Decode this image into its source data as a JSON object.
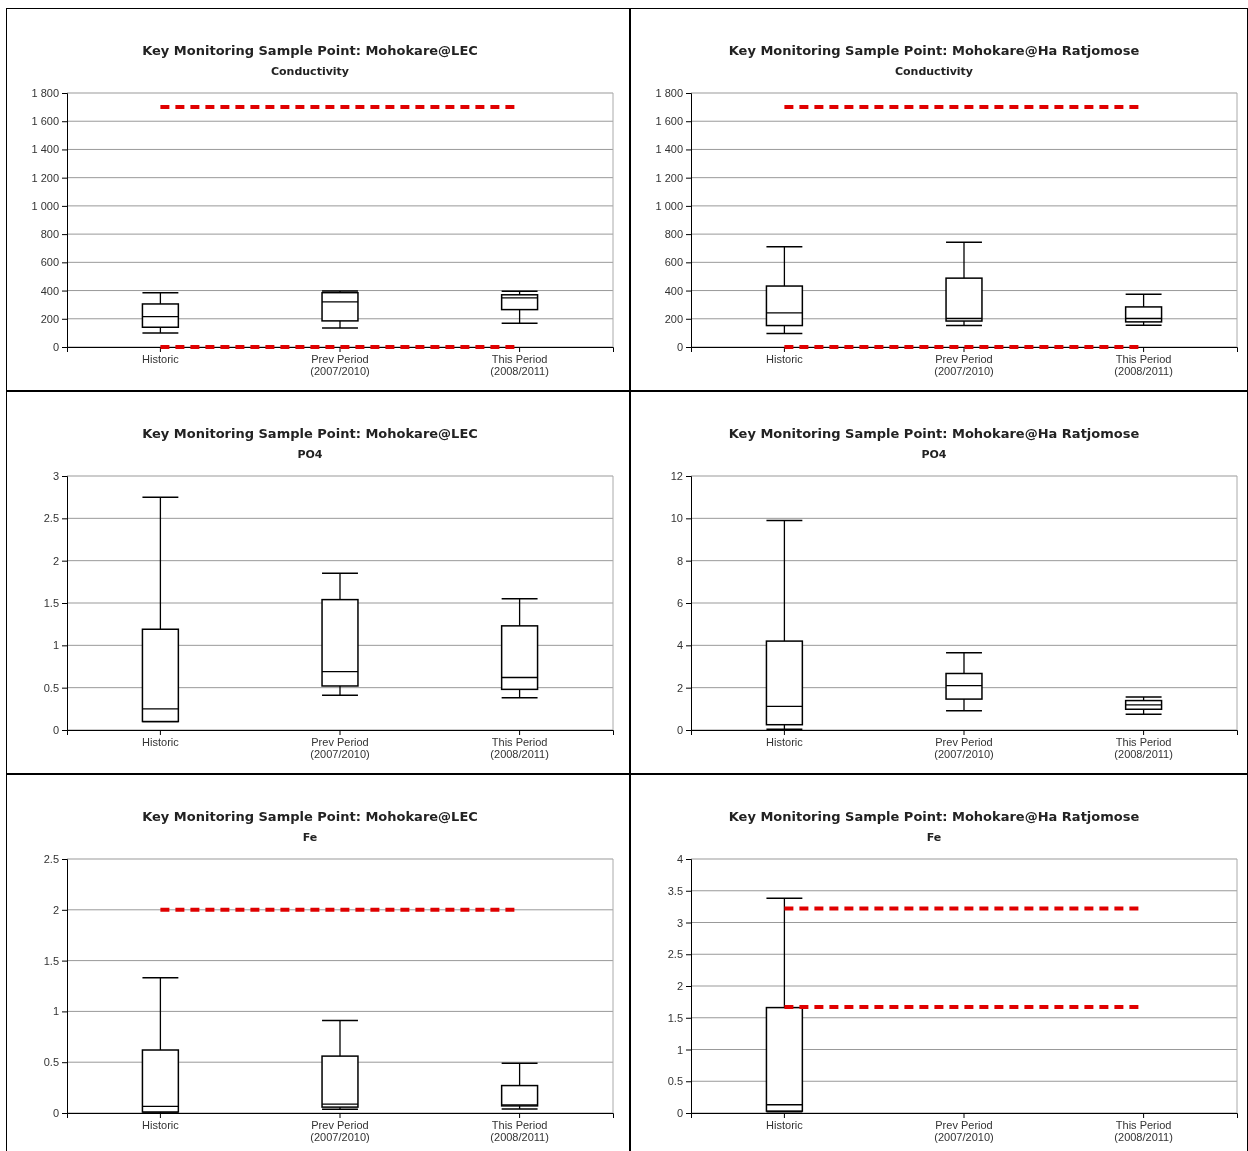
{
  "chart_data": [
    {
      "type": "box",
      "title": "Key Monitoring Sample Point: Mohokare@LEC",
      "subtitle": "Conductivity",
      "categories": [
        "Historic",
        "Prev Period (2007/2010)",
        "This Period (2008/2011)"
      ],
      "boxes": [
        {
          "low": 100,
          "q1": 140,
          "median": 215,
          "q3": 305,
          "high": 385
        },
        {
          "low": 135,
          "q1": 185,
          "median": 320,
          "q3": 385,
          "high": 397
        },
        {
          "low": 168,
          "q1": 265,
          "median": 348,
          "q3": 370,
          "high": 395
        }
      ],
      "ylim": [
        0,
        1800
      ],
      "yticks": [
        0,
        200,
        400,
        600,
        800,
        {
          "value": 1000,
          "label": "1 000"
        },
        {
          "value": 1200,
          "label": "1 200"
        },
        {
          "value": 1400,
          "label": "1 400"
        },
        {
          "value": 1600,
          "label": "1 600"
        },
        {
          "value": 1800,
          "label": "1 800"
        }
      ],
      "grid": "y",
      "ref_lines": [
        {
          "axis": "y",
          "value": 1700,
          "color": "#e00000",
          "line_style": "dashed"
        },
        {
          "axis": "y",
          "value": 0,
          "color": "#e00000",
          "line_style": "dashed"
        }
      ]
    },
    {
      "type": "box",
      "title": "Key Monitoring Sample Point: Mohokare@Ha Ratjomose",
      "subtitle": "Conductivity",
      "categories": [
        "Historic",
        "Prev Period (2007/2010)",
        "This Period (2008/2011)"
      ],
      "boxes": [
        {
          "low": 95,
          "q1": 152,
          "median": 242,
          "q3": 432,
          "high": 710
        },
        {
          "low": 152,
          "q1": 184,
          "median": 202,
          "q3": 488,
          "high": 742
        },
        {
          "low": 155,
          "q1": 178,
          "median": 202,
          "q3": 284,
          "high": 373
        }
      ],
      "ylim": [
        0,
        1800
      ],
      "yticks": [
        0,
        200,
        400,
        600,
        800,
        {
          "value": 1000,
          "label": "1 000"
        },
        {
          "value": 1200,
          "label": "1 200"
        },
        {
          "value": 1400,
          "label": "1 400"
        },
        {
          "value": 1600,
          "label": "1 600"
        },
        {
          "value": 1800,
          "label": "1 800"
        }
      ],
      "grid": "y",
      "ref_lines": [
        {
          "axis": "y",
          "value": 1700,
          "color": "#e00000",
          "line_style": "dashed"
        },
        {
          "axis": "y",
          "value": 0,
          "color": "#e00000",
          "line_style": "dashed"
        }
      ]
    },
    {
      "type": "box",
      "title": "Key Monitoring Sample Point: Mohokare@LEC",
      "subtitle": "PO4",
      "categories": [
        "Historic",
        "Prev Period (2007/2010)",
        "This Period (2008/2011)"
      ],
      "boxes": [
        {
          "low": 0.1,
          "q1": 0.1,
          "median": 0.25,
          "q3": 1.19,
          "high": 2.75
        },
        {
          "low": 0.41,
          "q1": 0.52,
          "median": 0.69,
          "q3": 1.54,
          "high": 1.85
        },
        {
          "low": 0.38,
          "q1": 0.48,
          "median": 0.62,
          "q3": 1.23,
          "high": 1.55
        }
      ],
      "ylim": [
        0,
        3
      ],
      "yticks": [
        0,
        0.5,
        1,
        1.5,
        2,
        2.5,
        3
      ],
      "grid": "y"
    },
    {
      "type": "box",
      "title": "Key Monitoring Sample Point: Mohokare@Ha Ratjomose",
      "subtitle": "PO4",
      "categories": [
        "Historic",
        "Prev Period (2007/2010)",
        "This Period (2008/2011)"
      ],
      "boxes": [
        {
          "low": 0.03,
          "q1": 0.25,
          "median": 1.12,
          "q3": 4.2,
          "high": 9.9
        },
        {
          "low": 0.91,
          "q1": 1.46,
          "median": 2.1,
          "q3": 2.67,
          "high": 3.65
        },
        {
          "low": 0.75,
          "q1": 0.98,
          "median": 1.19,
          "q3": 1.39,
          "high": 1.56
        }
      ],
      "ylim": [
        0,
        12
      ],
      "yticks": [
        0,
        2,
        4,
        6,
        8,
        10,
        12
      ],
      "grid": "y"
    },
    {
      "type": "box",
      "title": "Key Monitoring Sample Point: Mohokare@LEC",
      "subtitle": "Fe",
      "categories": [
        "Historic",
        "Prev Period (2007/2010)",
        "This Period (2008/2011)"
      ],
      "boxes": [
        {
          "low": 0,
          "q1": 0.01,
          "median": 0.065,
          "q3": 0.62,
          "high": 1.33
        },
        {
          "low": 0.036,
          "q1": 0.058,
          "median": 0.087,
          "q3": 0.56,
          "high": 0.91
        },
        {
          "low": 0.04,
          "q1": 0.07,
          "median": 0.08,
          "q3": 0.27,
          "high": 0.49
        }
      ],
      "ylim": [
        0,
        2.5
      ],
      "yticks": [
        0,
        0.5,
        1,
        1.5,
        2,
        2.5
      ],
      "grid": "y",
      "ref_lines": [
        {
          "axis": "y",
          "value": 2,
          "color": "#e00000",
          "line_style": "dashed"
        }
      ]
    },
    {
      "type": "box",
      "title": "Key Monitoring Sample Point: Mohokare@Ha Ratjomose",
      "subtitle": "Fe",
      "categories": [
        "Historic",
        "Prev Period (2007/2010)",
        "This Period (2008/2011)"
      ],
      "boxes": [
        {
          "low": 0.02,
          "q1": 0.03,
          "median": 0.13,
          "q3": 1.66,
          "high": 3.38
        },
        null,
        null
      ],
      "ylim": [
        0,
        4
      ],
      "yticks": [
        0,
        0.5,
        1,
        1.5,
        2,
        2.5,
        3,
        3.5,
        4
      ],
      "grid": "y",
      "ref_lines": [
        {
          "axis": "y",
          "value": 3.22,
          "color": "#e00000",
          "line_style": "dashed"
        },
        {
          "axis": "y",
          "value": 1.67,
          "color": "#e00000",
          "line_style": "dashed"
        }
      ]
    }
  ]
}
